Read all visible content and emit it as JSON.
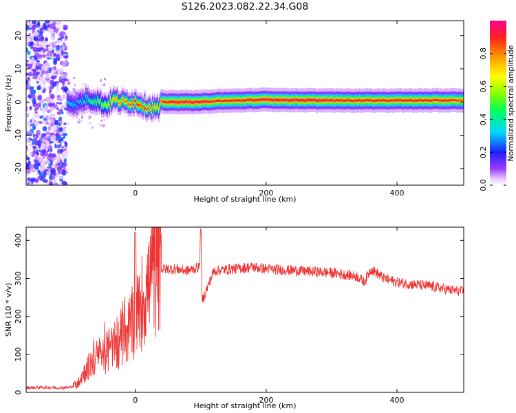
{
  "title": "S126.2023.082.22.34.G08",
  "chart_data": [
    {
      "type": "heatmap",
      "xlabel": "Height of straight line (km)",
      "ylabel": "Frequency (Hz)",
      "xlim": [
        -167,
        502
      ],
      "ylim": [
        -25,
        24.5
      ],
      "xticks": [
        0,
        200,
        400
      ],
      "xtick_labels": [
        "0",
        "200",
        "400"
      ],
      "yticks": [
        20,
        10,
        0,
        -10,
        -20
      ],
      "ytick_labels": [
        "20",
        "10",
        "0",
        "-10",
        "-20"
      ],
      "colorbar": {
        "label": "Normalized spectral amplitude",
        "ticks": [
          0.0,
          0.2,
          0.4,
          0.6,
          0.8
        ],
        "tick_labels": [
          "0.0",
          "0.2",
          "0.4",
          "0.6",
          "0.8"
        ],
        "range": [
          0,
          1
        ]
      },
      "ridge": {
        "x": [
          -105,
          -90,
          -75,
          -60,
          -45,
          -35,
          -20,
          0,
          20,
          35,
          40,
          60,
          80,
          100,
          120,
          160,
          200,
          240,
          280,
          320,
          360,
          400,
          440,
          480,
          502
        ],
        "frequency": [
          0.0,
          -0.5,
          1.0,
          0.5,
          -1.0,
          0.8,
          0.0,
          0.0,
          -1.5,
          -2.0,
          0.0,
          0.0,
          0.0,
          0.0,
          0.3,
          0.5,
          0.7,
          0.6,
          0.5,
          0.5,
          0.5,
          0.5,
          0.5,
          0.5,
          0.5
        ],
        "amplitude": [
          0.35,
          0.3,
          0.4,
          0.5,
          0.6,
          0.75,
          0.8,
          0.9,
          0.85,
          0.7,
          0.9,
          0.95,
          0.95,
          0.95,
          0.9,
          0.9,
          0.95,
          0.95,
          0.95,
          0.9,
          0.9,
          0.9,
          0.9,
          0.9,
          0.85
        ]
      },
      "noise_region_x": [
        -167,
        -105
      ]
    },
    {
      "type": "line",
      "xlabel": "Height of straight line (km)",
      "ylabel": "SNR (10 * v/v)",
      "xlim": [
        -167,
        502
      ],
      "ylim": [
        0,
        435
      ],
      "xticks": [
        0,
        200,
        400
      ],
      "xtick_labels": [
        "0",
        "200",
        "400"
      ],
      "yticks": [
        0,
        100,
        200,
        300,
        400
      ],
      "ytick_labels": [
        "0",
        "100",
        "200",
        "300",
        "400"
      ],
      "color": "#ee3333",
      "series": [
        {
          "x": [
            -167,
            -140,
            -120,
            -100,
            -90,
            -80,
            -70,
            -60,
            -50,
            -40,
            -30,
            -20,
            -10,
            -2,
            0,
            2,
            10,
            20,
            30,
            40,
            60,
            80,
            98,
            100,
            102,
            120,
            150,
            180,
            200,
            250,
            300,
            340,
            350,
            360,
            380,
            400,
            420,
            450,
            480,
            502
          ],
          "values": [
            12,
            13,
            12,
            13,
            20,
            50,
            70,
            90,
            100,
            110,
            120,
            140,
            165,
            190,
            420,
            200,
            240,
            280,
            315,
            325,
            325,
            320,
            330,
            430,
            240,
            320,
            325,
            330,
            325,
            320,
            315,
            305,
            290,
            325,
            300,
            290,
            285,
            280,
            270,
            265
          ]
        }
      ],
      "spikes": [
        {
          "x": 0,
          "value": 420
        },
        {
          "x": 100,
          "value": 430
        }
      ]
    }
  ]
}
